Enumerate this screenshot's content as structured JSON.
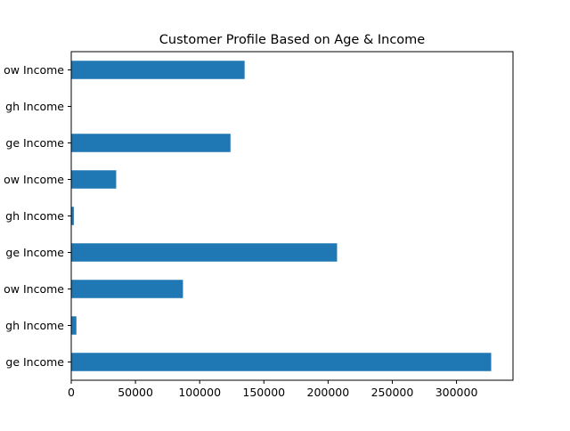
{
  "chart_data": {
    "type": "bar",
    "orientation": "horizontal",
    "title": "Customer Profile Based on Age & Income",
    "xlabel": "",
    "ylabel": "",
    "categories": [
      "ge Income",
      "gh Income",
      "ow Income",
      "ge Income",
      "gh Income",
      "ow Income",
      "ge Income",
      "gh Income",
      "ow Income"
    ],
    "values": [
      327000,
      4000,
      87000,
      207000,
      2000,
      35000,
      124000,
      0,
      135000
    ],
    "xlim": [
      0,
      344000
    ],
    "xticks": [
      0,
      50000,
      100000,
      150000,
      200000,
      250000,
      300000
    ],
    "grid": false,
    "legend": "none",
    "bar_color": "#1f77b4"
  }
}
